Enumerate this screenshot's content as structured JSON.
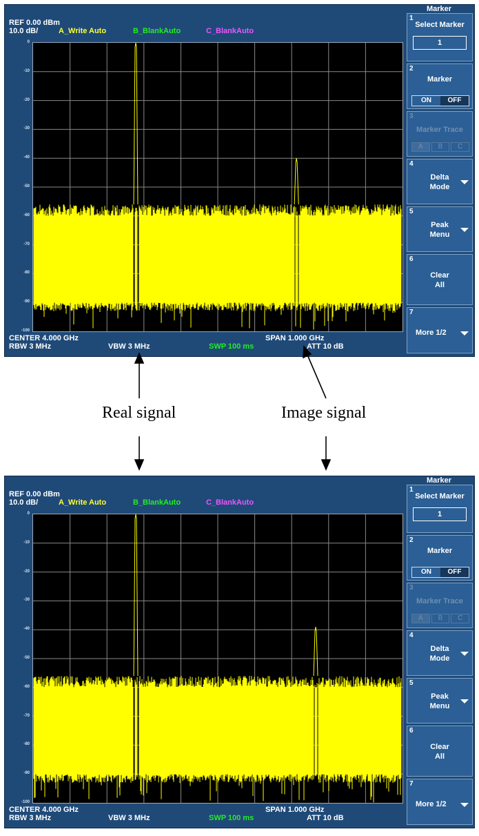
{
  "screens": [
    {
      "header": {
        "ref": "REF  0.00 dBm",
        "scale": "10.0 dB/",
        "trace_a": "A_Write Auto",
        "trace_b": "B_BlankAuto",
        "trace_c": "C_BlankAuto"
      },
      "footer": {
        "center": "CENTER 4.000 GHz",
        "span": "SPAN 1.000 GHz",
        "rbw": "RBW  3 MHz",
        "vbw": "VBW  3 MHz",
        "swp": "SWP  100 ms",
        "att": "ATT 10 dB"
      }
    },
    {
      "header": {
        "ref": "REF  0.00 dBm",
        "scale": "10.0 dB/",
        "trace_a": "A_Write Auto",
        "trace_b": "B_BlankAuto",
        "trace_c": "C_BlankAuto"
      },
      "footer": {
        "center": "CENTER 4.000 GHz",
        "span": "SPAN 1.000 GHz",
        "rbw": "RBW  3 MHz",
        "vbw": "VBW  3 MHz",
        "swp": "SWP  100 ms",
        "att": "ATT 10 dB"
      }
    }
  ],
  "y_ticks": [
    "0",
    "-10",
    "-20",
    "-30",
    "-40",
    "-50",
    "-60",
    "-70",
    "-80",
    "-90",
    "-100"
  ],
  "softkeys": {
    "panel_title": "Marker",
    "k1": {
      "num": "1",
      "label": "Select Marker",
      "value": "1"
    },
    "k2": {
      "num": "2",
      "label": "Marker",
      "on": "ON",
      "off": "OFF"
    },
    "k3": {
      "num": "3",
      "label": "Marker Trace",
      "a": "A",
      "b": "B",
      "c": "C"
    },
    "k4": {
      "num": "4",
      "line1": "Delta",
      "line2": "Mode"
    },
    "k5": {
      "num": "5",
      "line1": "Peak",
      "line2": "Menu"
    },
    "k6": {
      "num": "6",
      "line1": "Clear",
      "line2": "All"
    },
    "k7": {
      "num": "7",
      "label": "More 1/2"
    }
  },
  "annotations": {
    "real": "Real signal",
    "image": "Image signal"
  },
  "chart_data": [
    {
      "type": "line",
      "title": "",
      "xlabel": "",
      "ylabel": "",
      "y_unit": "dBm",
      "ylim": [
        -100,
        0
      ],
      "grid": true,
      "x_center_ghz": 4.0,
      "x_span_ghz": 1.0,
      "noise_floor_dbm": [
        -90,
        -58
      ],
      "series": [
        {
          "name": "A_Write Auto",
          "peaks": [
            {
              "x_ghz": 3.778,
              "y_dbm": 0
            },
            {
              "x_ghz": 4.213,
              "y_dbm": -40
            }
          ]
        }
      ]
    },
    {
      "type": "line",
      "title": "",
      "xlabel": "",
      "ylabel": "",
      "y_unit": "dBm",
      "ylim": [
        -100,
        0
      ],
      "grid": true,
      "x_center_ghz": 4.0,
      "x_span_ghz": 1.0,
      "noise_floor_dbm": [
        -90,
        -58
      ],
      "series": [
        {
          "name": "A_Write Auto",
          "peaks": [
            {
              "x_ghz": 3.778,
              "y_dbm": 0
            },
            {
              "x_ghz": 4.265,
              "y_dbm": -39
            }
          ]
        }
      ]
    }
  ]
}
